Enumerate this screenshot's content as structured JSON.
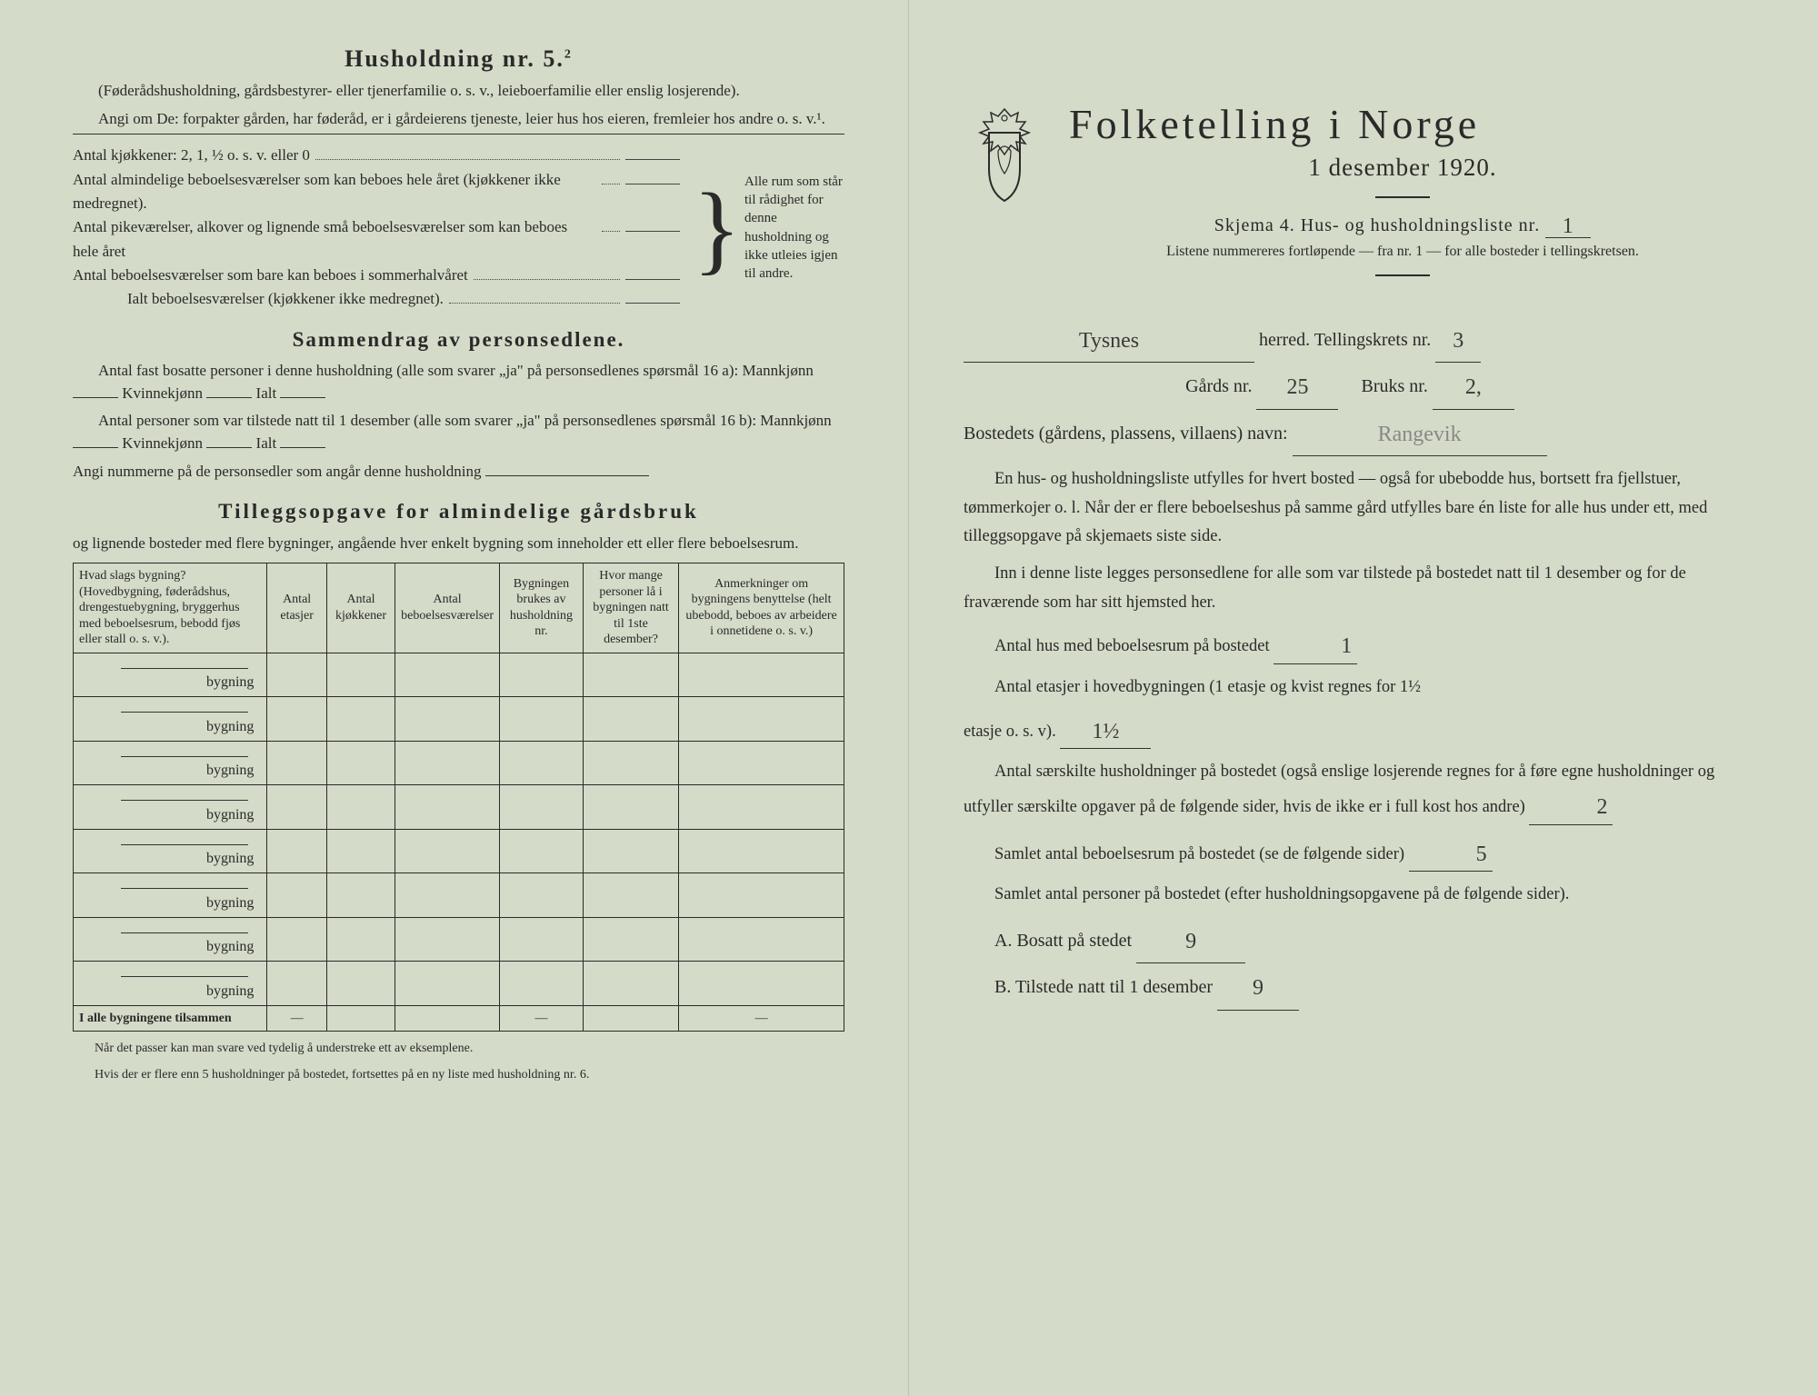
{
  "left": {
    "h5_title": "Husholdning nr. 5.",
    "h5_sup": "2",
    "h5_sub": "(Føderådshusholdning, gårdsbestyrer- eller tjenerfamilie o. s. v., leieboerfamilie eller enslig losjerende).",
    "h5_angi": "Angi om De: forpakter gården, har føderåd, er i gårdeierens tjeneste, leier hus hos eieren, fremleier hos andre o. s. v.¹.",
    "kjokken_label": "Antal kjøkkener: 2, 1, ½ o. s. v. eller 0",
    "r1": "Antal almindelige beboelsesværelser som kan beboes hele året (kjøkkener ikke medregnet).",
    "r2": "Antal pikeværelser, alkover og lignende små beboelsesværelser som kan beboes hele året",
    "r3": "Antal beboelsesværelser som bare kan beboes i sommerhalvåret",
    "r4": "Ialt beboelsesværelser (kjøkkener ikke medregnet).",
    "brace_note": "Alle rum som står til rådighet for denne husholdning og ikke utleies igjen til andre.",
    "sammen_title": "Sammendrag av personsedlene.",
    "s1_a": "Antal fast bosatte personer i denne husholdning (alle som svarer „ja\" på personsedlenes spørsmål 16 a): Mannkjønn",
    "s1_b": "Kvinnekjønn",
    "s1_c": "Ialt",
    "s2_a": "Antal personer som var tilstede natt til 1 desember (alle som svarer „ja\" på personsedlenes spørsmål 16 b): Mannkjønn",
    "s2_b": "Kvinnekjønn",
    "s2_c": "Ialt",
    "s3": "Angi nummerne på de personsedler som angår denne husholdning",
    "tillegg_title": "Tilleggsopgave for almindelige gårdsbruk",
    "tillegg_sub": "og lignende bosteder med flere bygninger, angående hver enkelt bygning som inneholder ett eller flere beboelsesrum.",
    "table": {
      "headers": [
        "Hvad slags bygning?\n(Hovedbygning, føderådshus, drengestuebygning, bryggerhus med beboelsesrum, bebodd fjøs eller stall o. s. v.).",
        "Antal etasjer",
        "Antal kjøkkener",
        "Antal beboelsesværelser",
        "Bygningen brukes av husholdning nr.",
        "Hvor mange personer lå i bygningen natt til 1ste desember?",
        "Anmerkninger om bygningens benyttelse (helt ubebodd, beboes av arbeidere i onnetidene o. s. v.)"
      ],
      "row_word": "bygning",
      "row_count": 8,
      "footer_label": "I alle bygningene tilsammen",
      "dash": "—"
    },
    "footnote1": "Når det passer kan man svare ved tydelig å understreke ett av eksemplene.",
    "footnote2": "Hvis der er flere enn 5 husholdninger på bostedet, fortsettes på en ny liste med husholdning nr. 6."
  },
  "right": {
    "title": "Folketelling i Norge",
    "date": "1 desember 1920.",
    "skjema": "Skjema 4.  Hus- og husholdningsliste nr.",
    "skjema_val": "1",
    "listene": "Listene nummereres fortløpende — fra nr. 1 — for alle bosteder i tellingskretsen.",
    "herred_label": "herred.   Tellingskrets nr.",
    "herred_val": "Tysnes",
    "krets_val": "3",
    "gard_label": "Gårds nr.",
    "gard_val": "25",
    "bruk_label": "Bruks nr.",
    "bruk_val": "2,",
    "bosted_label": "Bostedets (gårdens, plassens, villaens) navn:",
    "bosted_val": "Rangevik",
    "p1": "En hus- og husholdningsliste utfylles for hvert bosted — også for ubebodde hus, bortsett fra fjellstuer, tømmerkojer o. l.  Når der er flere beboelseshus på samme gård utfylles bare én liste for alle hus under ett, med tilleggsopgave på skjemaets siste side.",
    "p2": "Inn i denne liste legges personsedlene for alle som var tilstede på bostedet natt til 1 desember og for de fraværende som har sitt hjemsted her.",
    "q1_label": "Antal hus med beboelsesrum på bostedet",
    "q1_val": "1",
    "q2_label_a": "Antal etasjer i hovedbygningen (1 etasje og kvist regnes for 1½",
    "q2_label_b": "etasje o. s. v).",
    "q2_val": "1½",
    "q3": "Antal særskilte husholdninger på bostedet (også enslige losjerende regnes for å føre egne husholdninger og utfyller særskilte opgaver på de følgende sider, hvis de ikke er i full kost hos andre)",
    "q3_val": "2",
    "q4": "Samlet antal beboelsesrum på bostedet (se de følgende sider)",
    "q4_val": "5",
    "q5": "Samlet antal personer på bostedet (efter husholdningsopgavene på de følgende sider).",
    "qa_label": "A.  Bosatt på stedet",
    "qa_val": "9",
    "qb_label": "B.  Tilstede natt til 1 desember",
    "qb_val": "9"
  }
}
